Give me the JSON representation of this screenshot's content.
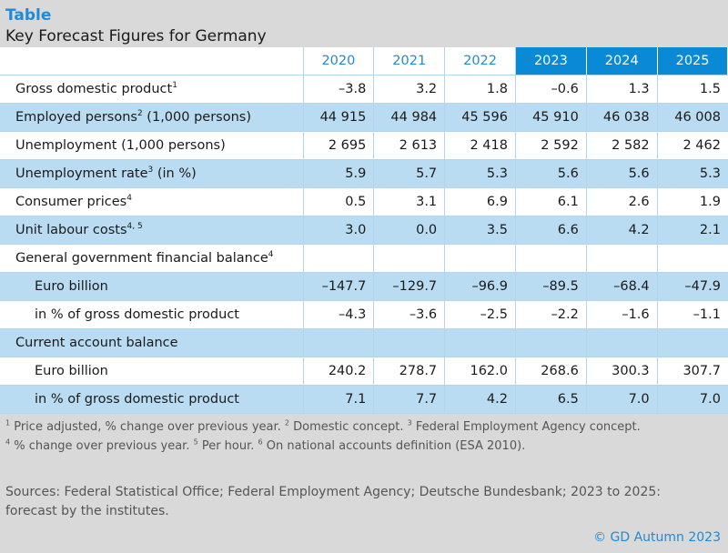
{
  "header": {
    "label": "Table",
    "title": "Key Forecast Figures for Germany"
  },
  "chart_data": {
    "type": "table",
    "title": "Key Forecast Figures for Germany",
    "columns": [
      "2020",
      "2021",
      "2022",
      "2023",
      "2024",
      "2025"
    ],
    "forecast_columns": [
      "2023",
      "2024",
      "2025"
    ],
    "rows": [
      {
        "label": "Gross domestic product",
        "sup": "1",
        "values": [
          "–3.8",
          "3.2",
          "1.8",
          "–0.6",
          "1.3",
          "1.5"
        ]
      },
      {
        "label": "Employed persons",
        "sup": "2",
        "suffix": " (1,000 persons)",
        "values": [
          "44 915",
          "44 984",
          "45 596",
          "45 910",
          "46 038",
          "46 008"
        ]
      },
      {
        "label": "Unemployment (1,000 persons)",
        "values": [
          "2 695",
          "2 613",
          "2 418",
          "2 592",
          "2 582",
          "2 462"
        ]
      },
      {
        "label": "Unemployment rate",
        "sup": "3",
        "suffix": " (in %)",
        "values": [
          "5.9",
          "5.7",
          "5.3",
          "5.6",
          "5.6",
          "5.3"
        ]
      },
      {
        "label": "Consumer prices",
        "sup": "4",
        "values": [
          "0.5",
          "3.1",
          "6.9",
          "6.1",
          "2.6",
          "1.9"
        ]
      },
      {
        "label": "Unit labour costs",
        "sup": "4, 5",
        "values": [
          "3.0",
          "0.0",
          "3.5",
          "6.6",
          "4.2",
          "2.1"
        ]
      },
      {
        "label": "General government financial balance",
        "sup": "4",
        "values": [
          "",
          "",
          "",
          "",
          "",
          ""
        ]
      },
      {
        "label": "Euro billion",
        "sub": true,
        "values": [
          "–147.7",
          "–129.7",
          "–96.9",
          "–89.5",
          "–68.4",
          "–47.9"
        ]
      },
      {
        "label": "in % of gross domestic product",
        "sub": true,
        "values": [
          "–4.3",
          "–3.6",
          "–2.5",
          "–2.2",
          "–1.6",
          "–1.1"
        ]
      },
      {
        "label": "Current account balance",
        "values": [
          "",
          "",
          "",
          "",
          "",
          ""
        ]
      },
      {
        "label": "Euro billion",
        "sub": true,
        "values": [
          "240.2",
          "278.7",
          "162.0",
          "268.6",
          "300.3",
          "307.7"
        ]
      },
      {
        "label": "in % of gross domestic product",
        "sub": true,
        "values": [
          "7.1",
          "7.7",
          "4.2",
          "6.5",
          "7.0",
          "7.0"
        ]
      }
    ]
  },
  "footnotes": {
    "line1": [
      {
        "sup": "1",
        "text": " Price adjusted, % change over previous year. "
      },
      {
        "sup": "2",
        "text": " Domestic concept. "
      },
      {
        "sup": "3",
        "text": " Federal Employment Agency concept."
      }
    ],
    "line2": [
      {
        "sup": "4",
        "text": " % change over previous year. "
      },
      {
        "sup": "5",
        "text": " Per hour. "
      },
      {
        "sup": "6",
        "text": " On national accounts definition (ESA 2010)."
      }
    ]
  },
  "sources": "Sources: Federal Statistical Office; Federal Employment Agency; Deutsche Bundesbank; 2023 to 2025: forecast by the institutes.",
  "copyright": "© GD Autumn 2023",
  "colors": {
    "accent": "#1f8ad6",
    "forecast_header": "#0a8ad6",
    "row_band": "#b9dcf2",
    "background": "#d9d9d9"
  }
}
